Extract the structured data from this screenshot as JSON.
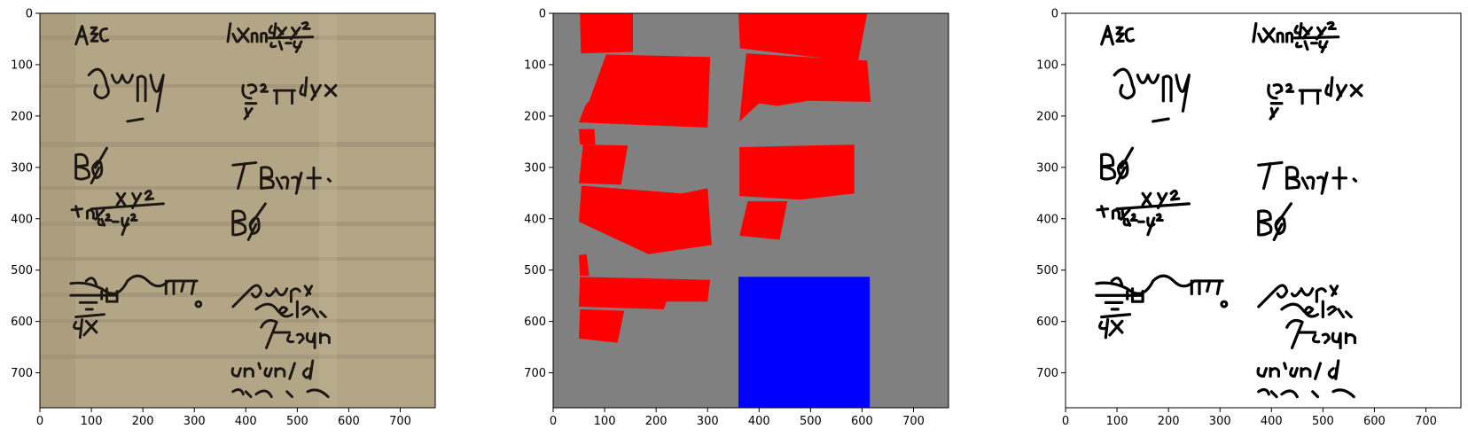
{
  "figure": {
    "panels": [
      {
        "id": "original",
        "kind": "manuscript-photo"
      },
      {
        "id": "segmentation",
        "kind": "region-mask"
      },
      {
        "id": "binarized",
        "kind": "binary-manuscript"
      }
    ],
    "axis": {
      "xlim": [
        0,
        768
      ],
      "ylim": [
        768,
        0
      ],
      "ticks": [
        0,
        100,
        200,
        300,
        400,
        500,
        600,
        700
      ],
      "tick_labels": [
        "0",
        "100",
        "200",
        "300",
        "400",
        "500",
        "600",
        "700"
      ]
    },
    "colors": {
      "parchment": "#b3a687",
      "ink": "#1c1712",
      "mask_background": "#808080",
      "mask_text_region": "#ff0000",
      "mask_drawing_region": "#0000ff",
      "binary_background": "#ffffff",
      "binary_ink": "#000000"
    },
    "manuscript_glyphs": [
      "AEC",
      "dy y²",
      "dxΠ",
      "a²-y²",
      "∫ωΠy",
      "βa²/y Π",
      "dyx",
      "BΦ",
      "TBΠ +.",
      "tΠ x y²",
      "a²-y²",
      "BΦ",
      "dx",
      "gvs m",
      "delez",
      "Hastan",
      "un'an / ad"
    ]
  }
}
